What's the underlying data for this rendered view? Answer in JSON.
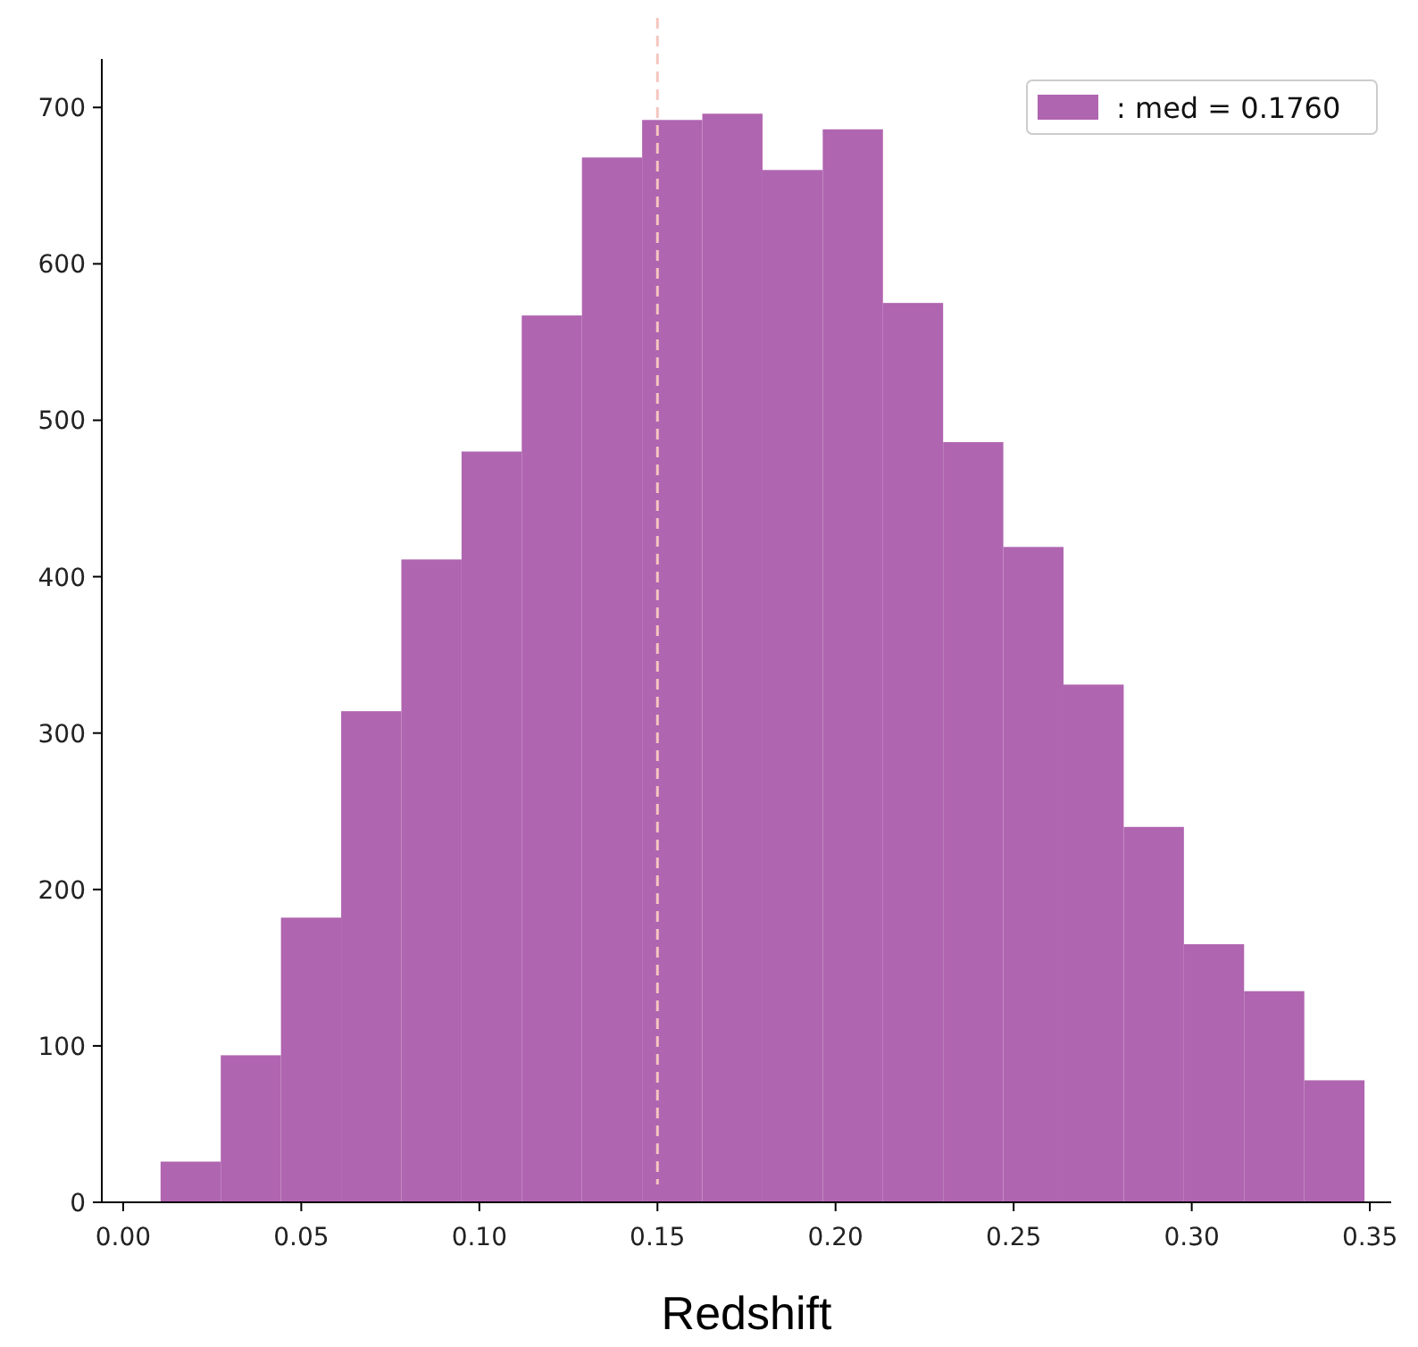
{
  "chart_data": {
    "type": "histogram",
    "xlabel": "Redshift",
    "bins": [
      0.0105,
      0.0274,
      0.0443,
      0.0612,
      0.0781,
      0.095,
      0.1119,
      0.1288,
      0.1457,
      0.1626,
      0.1795,
      0.1964,
      0.2133,
      0.2302,
      0.2471,
      0.264,
      0.2809,
      0.2978,
      0.3147,
      0.3316,
      0.3485
    ],
    "series": [
      {
        "name": ": med = 0.1760",
        "color": "#b065b0",
        "values": [
          26,
          94,
          182,
          314,
          411,
          480,
          567,
          668,
          692,
          696,
          660,
          686,
          575,
          486,
          419,
          331,
          240,
          165,
          135,
          78
        ]
      }
    ],
    "xlim": [
      -0.006,
      0.356
    ],
    "xticks": [
      {
        "value": 0,
        "label": "0.00"
      },
      {
        "value": 0.05,
        "label": "0.05"
      },
      {
        "value": 0.1,
        "label": "0.10"
      },
      {
        "value": 0.15,
        "label": "0.15"
      },
      {
        "value": 0.2,
        "label": "0.20"
      },
      {
        "value": 0.25,
        "label": "0.25"
      },
      {
        "value": 0.3,
        "label": "0.30"
      },
      {
        "value": 0.35,
        "label": "0.35"
      }
    ],
    "ylim": [
      0,
      731
    ],
    "yticks": [
      0,
      100,
      200,
      300,
      400,
      500,
      600,
      700
    ],
    "ref_lines": [
      {
        "axis": "x",
        "value": 0.15,
        "color": "#f5c6c0",
        "line_style": "dashed"
      }
    ],
    "legend": "top right",
    "grid": false
  }
}
